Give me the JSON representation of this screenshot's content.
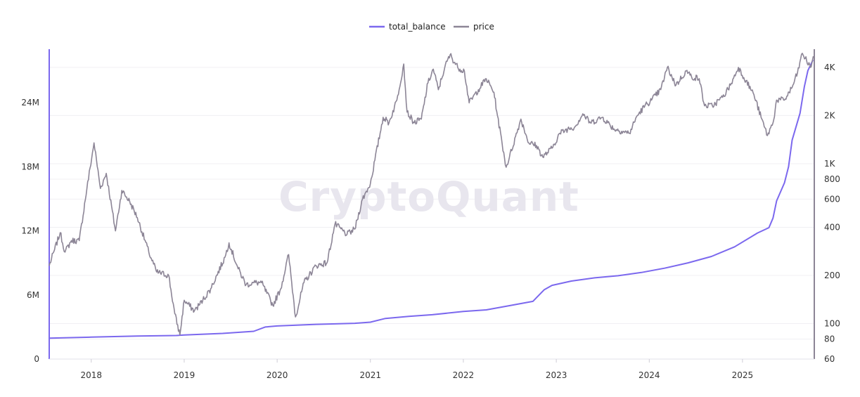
{
  "watermark": "CryptoQuant",
  "chart_data": {
    "type": "line",
    "legend_position": "top-center",
    "grid": true,
    "x_range": [
      "2017-07-20",
      "2025-10-10"
    ],
    "x_ticks": [
      "2018",
      "2019",
      "2020",
      "2021",
      "2022",
      "2023",
      "2024",
      "2025"
    ],
    "y_left": {
      "scale": "linear",
      "range": [
        0,
        29000000
      ],
      "ticks": [
        {
          "value": 0,
          "label": "0"
        },
        {
          "value": 6000000,
          "label": "6M"
        },
        {
          "value": 12000000,
          "label": "12M"
        },
        {
          "value": 18000000,
          "label": "18M"
        },
        {
          "value": 24000000,
          "label": "24M"
        }
      ]
    },
    "y_right": {
      "scale": "log",
      "range": [
        60,
        5200
      ],
      "ticks": [
        {
          "value": 60,
          "label": "60"
        },
        {
          "value": 80,
          "label": "80"
        },
        {
          "value": 100,
          "label": "100"
        },
        {
          "value": 200,
          "label": "200"
        },
        {
          "value": 400,
          "label": "400"
        },
        {
          "value": 600,
          "label": "600"
        },
        {
          "value": 800,
          "label": "800"
        },
        {
          "value": 1000,
          "label": "1K"
        },
        {
          "value": 2000,
          "label": "2K"
        },
        {
          "value": 4000,
          "label": "4K"
        }
      ]
    },
    "series": [
      {
        "name": "total_balance",
        "axis": "left",
        "color": "#7b68ee",
        "points": [
          [
            "2017-07-20",
            1950000
          ],
          [
            "2018-01-01",
            2050000
          ],
          [
            "2018-07-01",
            2150000
          ],
          [
            "2018-12-01",
            2200000
          ],
          [
            "2019-01-01",
            2250000
          ],
          [
            "2019-06-01",
            2400000
          ],
          [
            "2019-10-01",
            2600000
          ],
          [
            "2019-11-15",
            3000000
          ],
          [
            "2020-01-01",
            3100000
          ],
          [
            "2020-06-01",
            3250000
          ],
          [
            "2020-11-01",
            3350000
          ],
          [
            "2021-01-01",
            3450000
          ],
          [
            "2021-03-01",
            3800000
          ],
          [
            "2021-06-01",
            4000000
          ],
          [
            "2021-09-01",
            4150000
          ],
          [
            "2022-01-01",
            4450000
          ],
          [
            "2022-04-01",
            4600000
          ],
          [
            "2022-07-01",
            5000000
          ],
          [
            "2022-10-01",
            5400000
          ],
          [
            "2022-11-15",
            6500000
          ],
          [
            "2022-12-15",
            6900000
          ],
          [
            "2023-03-01",
            7300000
          ],
          [
            "2023-06-01",
            7600000
          ],
          [
            "2023-09-01",
            7800000
          ],
          [
            "2023-12-01",
            8100000
          ],
          [
            "2024-03-01",
            8500000
          ],
          [
            "2024-06-01",
            9000000
          ],
          [
            "2024-09-01",
            9600000
          ],
          [
            "2024-12-01",
            10500000
          ],
          [
            "2025-03-01",
            11800000
          ],
          [
            "2025-04-15",
            12300000
          ],
          [
            "2025-05-01",
            13200000
          ],
          [
            "2025-05-15",
            14800000
          ],
          [
            "2025-06-15",
            16500000
          ],
          [
            "2025-07-01",
            18000000
          ],
          [
            "2025-07-15",
            20500000
          ],
          [
            "2025-08-15",
            23000000
          ],
          [
            "2025-09-01",
            25500000
          ],
          [
            "2025-09-15",
            27000000
          ],
          [
            "2025-10-05",
            28000000
          ]
        ]
      },
      {
        "name": "price",
        "axis": "right",
        "color": "#8c8596",
        "points": [
          [
            "2017-07-20",
            230
          ],
          [
            "2017-08-10",
            290
          ],
          [
            "2017-09-01",
            370
          ],
          [
            "2017-09-20",
            280
          ],
          [
            "2017-10-15",
            330
          ],
          [
            "2017-11-15",
            330
          ],
          [
            "2017-12-15",
            700
          ],
          [
            "2018-01-12",
            1350
          ],
          [
            "2018-02-06",
            700
          ],
          [
            "2018-03-01",
            870
          ],
          [
            "2018-04-06",
            380
          ],
          [
            "2018-05-01",
            680
          ],
          [
            "2018-06-01",
            580
          ],
          [
            "2018-07-01",
            460
          ],
          [
            "2018-08-15",
            280
          ],
          [
            "2018-09-15",
            210
          ],
          [
            "2018-11-01",
            200
          ],
          [
            "2018-11-25",
            115
          ],
          [
            "2018-12-15",
            85
          ],
          [
            "2019-01-01",
            140
          ],
          [
            "2019-02-10",
            120
          ],
          [
            "2019-03-15",
            140
          ],
          [
            "2019-04-15",
            165
          ],
          [
            "2019-06-10",
            260
          ],
          [
            "2019-06-26",
            320
          ],
          [
            "2019-08-01",
            220
          ],
          [
            "2019-09-01",
            175
          ],
          [
            "2019-10-01",
            180
          ],
          [
            "2019-11-01",
            180
          ],
          [
            "2019-12-15",
            130
          ],
          [
            "2020-01-15",
            165
          ],
          [
            "2020-02-15",
            270
          ],
          [
            "2020-03-13",
            110
          ],
          [
            "2020-04-15",
            180
          ],
          [
            "2020-06-01",
            230
          ],
          [
            "2020-07-15",
            240
          ],
          [
            "2020-08-15",
            420
          ],
          [
            "2020-10-01",
            360
          ],
          [
            "2020-11-01",
            390
          ],
          [
            "2020-12-01",
            600
          ],
          [
            "2021-01-01",
            750
          ],
          [
            "2021-02-20",
            1950
          ],
          [
            "2021-03-15",
            1800
          ],
          [
            "2021-04-15",
            2500
          ],
          [
            "2021-05-12",
            4200
          ],
          [
            "2021-05-25",
            2100
          ],
          [
            "2021-06-22",
            1800
          ],
          [
            "2021-07-20",
            1900
          ],
          [
            "2021-08-15",
            3200
          ],
          [
            "2021-09-05",
            3900
          ],
          [
            "2021-09-25",
            2900
          ],
          [
            "2021-10-20",
            4000
          ],
          [
            "2021-11-10",
            4800
          ],
          [
            "2021-12-10",
            4000
          ],
          [
            "2022-01-05",
            3800
          ],
          [
            "2022-01-24",
            2400
          ],
          [
            "2022-03-01",
            2900
          ],
          [
            "2022-04-01",
            3400
          ],
          [
            "2022-05-01",
            2800
          ],
          [
            "2022-05-15",
            2000
          ],
          [
            "2022-06-18",
            950
          ],
          [
            "2022-07-01",
            1100
          ],
          [
            "2022-08-15",
            1900
          ],
          [
            "2022-09-15",
            1350
          ],
          [
            "2022-10-15",
            1300
          ],
          [
            "2022-11-09",
            1100
          ],
          [
            "2022-12-15",
            1250
          ],
          [
            "2023-01-15",
            1550
          ],
          [
            "2023-02-15",
            1650
          ],
          [
            "2023-03-15",
            1700
          ],
          [
            "2023-04-15",
            2050
          ],
          [
            "2023-05-15",
            1800
          ],
          [
            "2023-07-01",
            1950
          ],
          [
            "2023-08-15",
            1650
          ],
          [
            "2023-10-15",
            1550
          ],
          [
            "2023-11-15",
            2000
          ],
          [
            "2023-12-15",
            2300
          ],
          [
            "2024-01-10",
            2500
          ],
          [
            "2024-02-15",
            2900
          ],
          [
            "2024-03-12",
            4000
          ],
          [
            "2024-04-15",
            3100
          ],
          [
            "2024-05-25",
            3800
          ],
          [
            "2024-06-15",
            3500
          ],
          [
            "2024-07-15",
            3400
          ],
          [
            "2024-08-05",
            2300
          ],
          [
            "2024-09-05",
            2300
          ],
          [
            "2024-10-15",
            2600
          ],
          [
            "2024-11-15",
            3100
          ],
          [
            "2024-12-16",
            4000
          ],
          [
            "2025-01-15",
            3300
          ],
          [
            "2025-02-15",
            2700
          ],
          [
            "2025-03-15",
            1950
          ],
          [
            "2025-04-09",
            1500
          ],
          [
            "2025-05-01",
            1800
          ],
          [
            "2025-05-15",
            2500
          ],
          [
            "2025-06-15",
            2500
          ],
          [
            "2025-07-15",
            3000
          ],
          [
            "2025-08-05",
            3700
          ],
          [
            "2025-08-24",
            4900
          ],
          [
            "2025-09-10",
            4400
          ],
          [
            "2025-09-25",
            4000
          ],
          [
            "2025-10-06",
            4700
          ]
        ]
      }
    ]
  }
}
